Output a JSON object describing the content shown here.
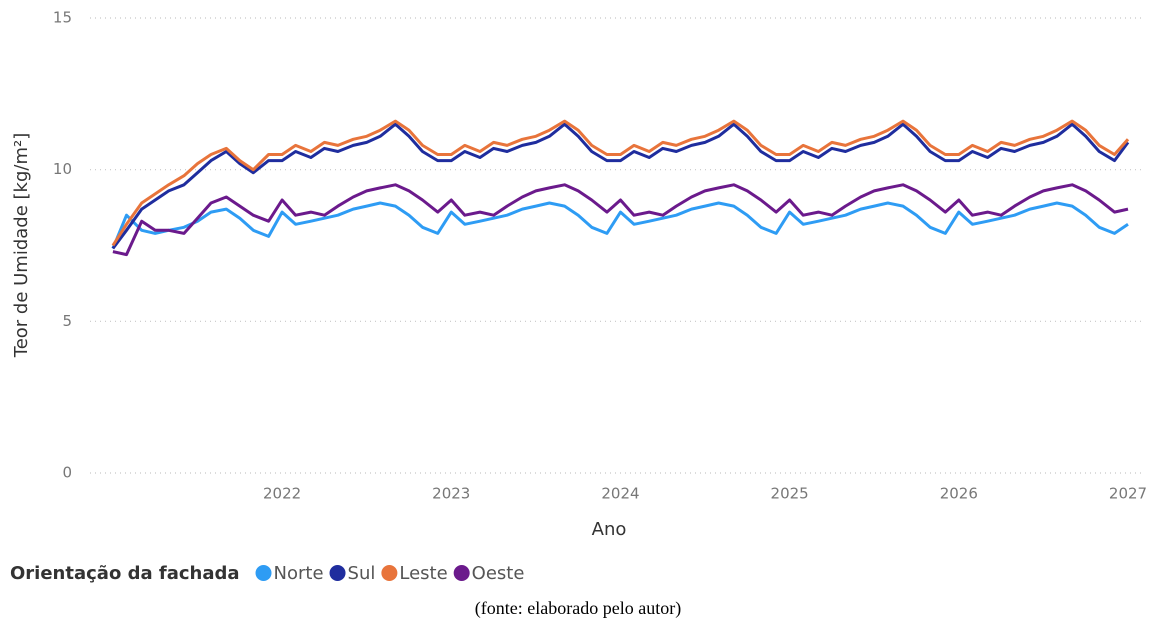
{
  "chart_data": {
    "type": "line",
    "y_label": "Teor de Umidade [kg/m²]",
    "x_label": "Ano",
    "legend_title": "Orientação da fachada",
    "xlim": [
      2020.9,
      2027.0
    ],
    "xticks": [
      2022,
      2023,
      2024,
      2025,
      2026,
      2027
    ],
    "ylim": [
      0,
      15
    ],
    "yticks": [
      0,
      5,
      10,
      15
    ],
    "grid": true,
    "legend": "bottom-left",
    "x": [
      2021.0,
      2021.08,
      2021.17,
      2021.25,
      2021.33,
      2021.42,
      2021.5,
      2021.58,
      2021.67,
      2021.75,
      2021.83,
      2021.92,
      2022.0,
      2022.08,
      2022.17,
      2022.25,
      2022.33,
      2022.42,
      2022.5,
      2022.58,
      2022.67,
      2022.75,
      2022.83,
      2022.92,
      2023.0,
      2023.08,
      2023.17,
      2023.25,
      2023.33,
      2023.42,
      2023.5,
      2023.58,
      2023.67,
      2023.75,
      2023.83,
      2023.92,
      2024.0,
      2024.08,
      2024.17,
      2024.25,
      2024.33,
      2024.42,
      2024.5,
      2024.58,
      2024.67,
      2024.75,
      2024.83,
      2024.92,
      2025.0,
      2025.08,
      2025.17,
      2025.25,
      2025.33,
      2025.42,
      2025.5,
      2025.58,
      2025.67,
      2025.75,
      2025.83,
      2025.92,
      2026.0,
      2026.08,
      2026.17,
      2026.25,
      2026.33,
      2026.42,
      2026.5,
      2026.58,
      2026.67,
      2026.75,
      2026.83,
      2026.92,
      2027.0
    ],
    "series": [
      {
        "name": "Norte",
        "color": "#2e9cf4",
        "values": [
          7.4,
          8.5,
          8.0,
          7.9,
          8.0,
          8.1,
          8.3,
          8.6,
          8.7,
          8.4,
          8.0,
          7.8,
          8.6,
          8.2,
          8.3,
          8.4,
          8.5,
          8.7,
          8.8,
          8.9,
          8.8,
          8.5,
          8.1,
          7.9,
          8.6,
          8.2,
          8.3,
          8.4,
          8.5,
          8.7,
          8.8,
          8.9,
          8.8,
          8.5,
          8.1,
          7.9,
          8.6,
          8.2,
          8.3,
          8.4,
          8.5,
          8.7,
          8.8,
          8.9,
          8.8,
          8.5,
          8.1,
          7.9,
          8.6,
          8.2,
          8.3,
          8.4,
          8.5,
          8.7,
          8.8,
          8.9,
          8.8,
          8.5,
          8.1,
          7.9,
          8.6,
          8.2,
          8.3,
          8.4,
          8.5,
          8.7,
          8.8,
          8.9,
          8.8,
          8.5,
          8.1,
          7.9,
          8.2
        ]
      },
      {
        "name": "Sul",
        "color": "#1f2d9e",
        "values": [
          7.4,
          8.0,
          8.7,
          9.0,
          9.3,
          9.5,
          9.9,
          10.3,
          10.6,
          10.2,
          9.9,
          10.3,
          10.3,
          10.6,
          10.4,
          10.7,
          10.6,
          10.8,
          10.9,
          11.1,
          11.5,
          11.1,
          10.6,
          10.3,
          10.3,
          10.6,
          10.4,
          10.7,
          10.6,
          10.8,
          10.9,
          11.1,
          11.5,
          11.1,
          10.6,
          10.3,
          10.3,
          10.6,
          10.4,
          10.7,
          10.6,
          10.8,
          10.9,
          11.1,
          11.5,
          11.1,
          10.6,
          10.3,
          10.3,
          10.6,
          10.4,
          10.7,
          10.6,
          10.8,
          10.9,
          11.1,
          11.5,
          11.1,
          10.6,
          10.3,
          10.3,
          10.6,
          10.4,
          10.7,
          10.6,
          10.8,
          10.9,
          11.1,
          11.5,
          11.1,
          10.6,
          10.3,
          10.9
        ]
      },
      {
        "name": "Leste",
        "color": "#e8743b",
        "values": [
          7.5,
          8.2,
          8.9,
          9.2,
          9.5,
          9.8,
          10.2,
          10.5,
          10.7,
          10.3,
          10.0,
          10.5,
          10.5,
          10.8,
          10.6,
          10.9,
          10.8,
          11.0,
          11.1,
          11.3,
          11.6,
          11.3,
          10.8,
          10.5,
          10.5,
          10.8,
          10.6,
          10.9,
          10.8,
          11.0,
          11.1,
          11.3,
          11.6,
          11.3,
          10.8,
          10.5,
          10.5,
          10.8,
          10.6,
          10.9,
          10.8,
          11.0,
          11.1,
          11.3,
          11.6,
          11.3,
          10.8,
          10.5,
          10.5,
          10.8,
          10.6,
          10.9,
          10.8,
          11.0,
          11.1,
          11.3,
          11.6,
          11.3,
          10.8,
          10.5,
          10.5,
          10.8,
          10.6,
          10.9,
          10.8,
          11.0,
          11.1,
          11.3,
          11.6,
          11.3,
          10.8,
          10.5,
          11.0
        ]
      },
      {
        "name": "Oeste",
        "color": "#6b1a8c",
        "values": [
          7.3,
          7.2,
          8.3,
          8.0,
          8.0,
          7.9,
          8.4,
          8.9,
          9.1,
          8.8,
          8.5,
          8.3,
          9.0,
          8.5,
          8.6,
          8.5,
          8.8,
          9.1,
          9.3,
          9.4,
          9.5,
          9.3,
          9.0,
          8.6,
          9.0,
          8.5,
          8.6,
          8.5,
          8.8,
          9.1,
          9.3,
          9.4,
          9.5,
          9.3,
          9.0,
          8.6,
          9.0,
          8.5,
          8.6,
          8.5,
          8.8,
          9.1,
          9.3,
          9.4,
          9.5,
          9.3,
          9.0,
          8.6,
          9.0,
          8.5,
          8.6,
          8.5,
          8.8,
          9.1,
          9.3,
          9.4,
          9.5,
          9.3,
          9.0,
          8.6,
          9.0,
          8.5,
          8.6,
          8.5,
          8.8,
          9.1,
          9.3,
          9.4,
          9.5,
          9.3,
          9.0,
          8.6,
          8.7
        ]
      }
    ]
  },
  "caption": "(fonte: elaborado pelo autor)"
}
